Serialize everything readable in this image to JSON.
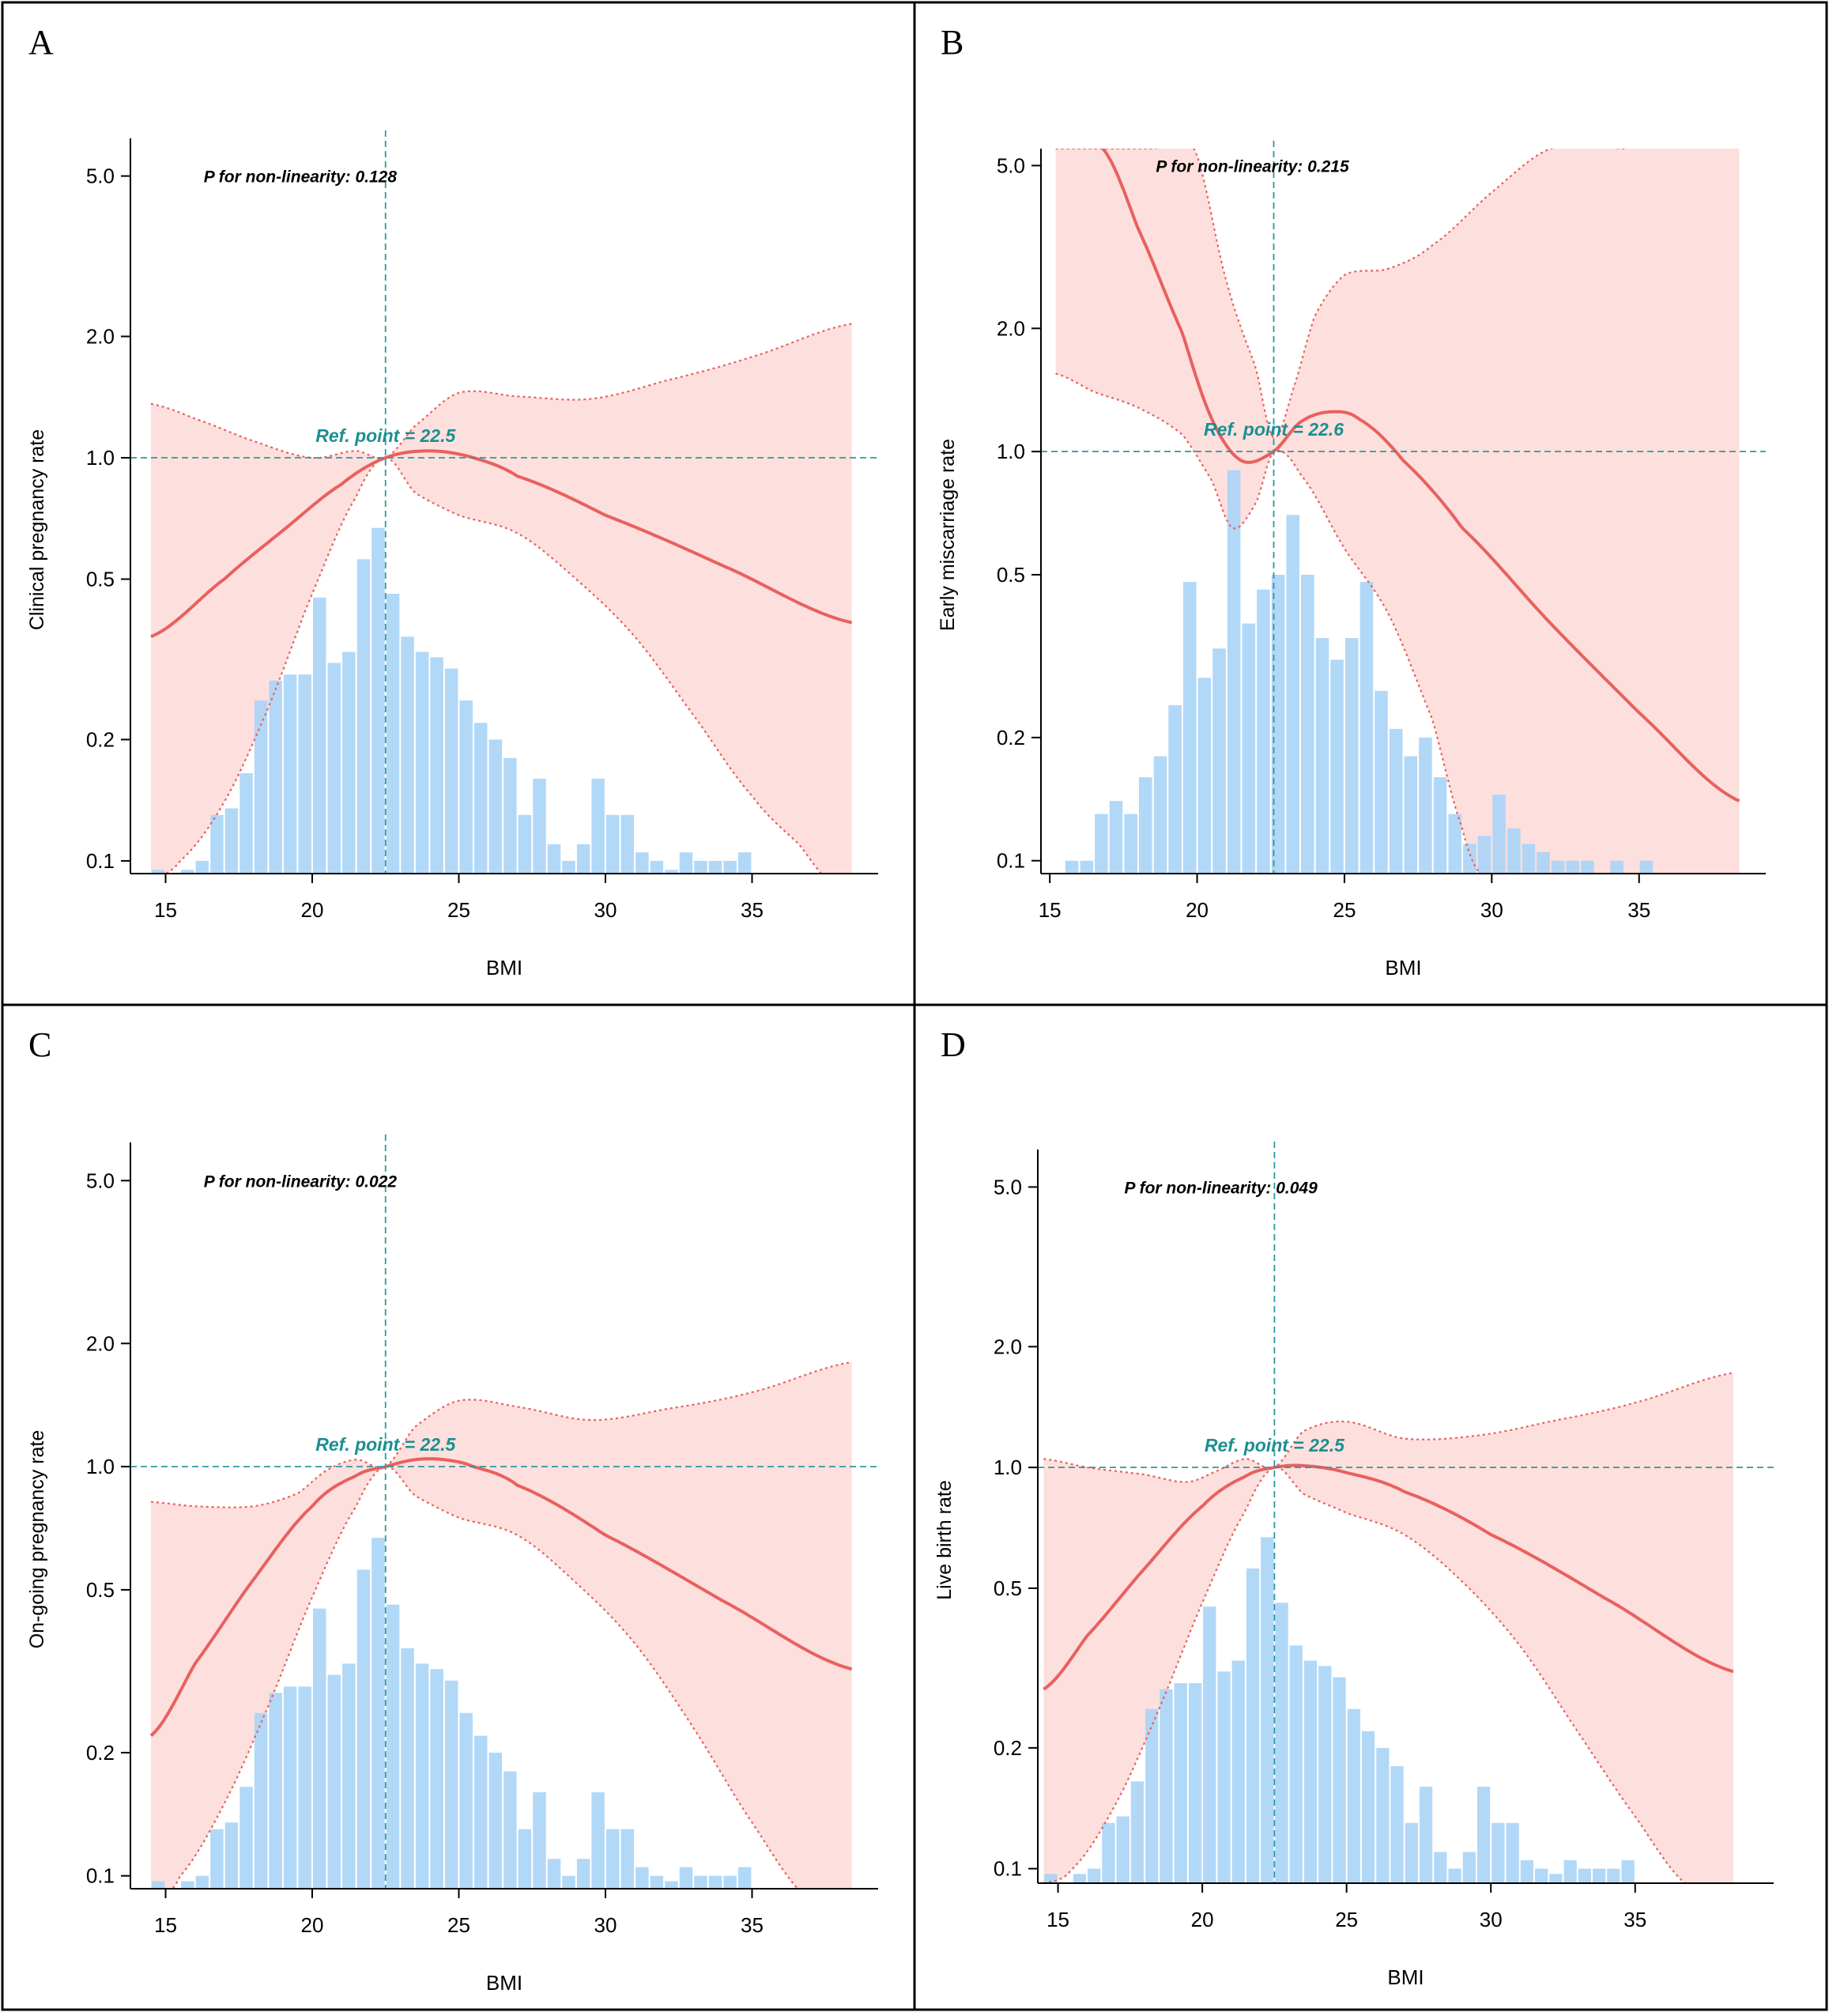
{
  "figure": {
    "colors": {
      "curve": "#e8615f",
      "band": "#fde0dd",
      "band_edge": "#e8615f",
      "hist": "#aad4f7",
      "hist_overlap": "#b4bde6",
      "ref_line": "#2a9a9f",
      "ref_text": "#1b8f91",
      "axis": "#000000",
      "frame": "#000000"
    }
  },
  "chart_data": [
    {
      "panel": "A",
      "type": "line",
      "xlabel": "BMI",
      "ylabel": "Clinical pregnancy rate",
      "xlim": [
        13.8,
        39.3
      ],
      "ylim": [
        0.093,
        6.2
      ],
      "yscale": "log",
      "xticks": [
        15,
        20,
        25,
        30,
        35
      ],
      "xtick_labels": [
        "15",
        "20",
        "25",
        "30",
        "35"
      ],
      "yticks": [
        0.1,
        0.2,
        0.5,
        1.0,
        2.0,
        5.0
      ],
      "ytick_labels": [
        "0.1",
        "0.2",
        "0.5",
        "1.0",
        "2.0",
        "5.0"
      ],
      "p_label": "P for non-linearity: 0.128",
      "p_at": [
        16.3,
        5.0
      ],
      "ref_label": "Ref. point = 22.5",
      "ref_x": 22.5,
      "ref_y": 1.0,
      "band_x_range": [
        14.5,
        38.4
      ],
      "curve": {
        "x": [
          14.5,
          17,
          19,
          21,
          22.5,
          24,
          25.5,
          27,
          30,
          34,
          38.4
        ],
        "y": [
          0.36,
          0.5,
          0.66,
          0.86,
          1.0,
          1.04,
          1.0,
          0.9,
          0.72,
          0.54,
          0.39
        ]
      },
      "ci_upper": {
        "x": [
          14.5,
          16,
          18,
          20,
          21.5,
          22.5,
          23.5,
          25,
          27,
          29.5,
          32,
          35,
          38.4
        ],
        "y": [
          1.36,
          1.25,
          1.1,
          1.0,
          1.04,
          1.0,
          1.2,
          1.45,
          1.42,
          1.4,
          1.55,
          1.78,
          2.15
        ]
      },
      "ci_lower": {
        "x": [
          14.5,
          15.5,
          17,
          18.5,
          20,
          21.5,
          22.5,
          23.5,
          25,
          27,
          29,
          31,
          33,
          35,
          36.6,
          37.8
        ],
        "y": [
          0.09,
          0.1,
          0.14,
          0.24,
          0.46,
          0.8,
          1.0,
          0.82,
          0.72,
          0.65,
          0.5,
          0.36,
          0.23,
          0.145,
          0.11,
          0.087
        ]
      },
      "histogram": {
        "bin_start": 14.5,
        "bin_width": 0.5,
        "heights": [
          0.095,
          0,
          0.095,
          0.1,
          0.13,
          0.135,
          0.165,
          0.25,
          0.28,
          0.29,
          0.29,
          0.45,
          0.31,
          0.33,
          0.56,
          0.67,
          0.46,
          0.36,
          0.33,
          0.32,
          0.3,
          0.25,
          0.22,
          0.2,
          0.18,
          0.13,
          0.16,
          0.11,
          0.1,
          0.11,
          0.16,
          0.13,
          0.13,
          0.105,
          0.1,
          0.095,
          0.105,
          0.1,
          0.1,
          0.1,
          0.105
        ]
      }
    },
    {
      "panel": "B",
      "type": "line",
      "xlabel": "BMI",
      "ylabel": "Early miscarriage rate",
      "xlim": [
        14.7,
        39.3
      ],
      "ylim": [
        0.093,
        5.5
      ],
      "yscale": "log",
      "xticks": [
        15,
        20,
        25,
        30,
        35
      ],
      "xtick_labels": [
        "15",
        "20",
        "25",
        "30",
        "35"
      ],
      "yticks": [
        0.1,
        0.2,
        0.5,
        1.0,
        2.0,
        5.0
      ],
      "ytick_labels": [
        "0.1",
        "0.2",
        "0.5",
        "1.0",
        "2.0",
        "5.0"
      ],
      "p_label": "P for non-linearity: 0.215",
      "p_at": [
        18.6,
        5.0
      ],
      "ref_label": "Ref. point = 22.6",
      "ref_x": 22.6,
      "ref_y": 1.0,
      "band_x_range": [
        15.2,
        38.4
      ],
      "curve": {
        "x": [
          16.8,
          18,
          19.5,
          20.5,
          21.5,
          22.6,
          23.5,
          24.5,
          25.5,
          27,
          29,
          32,
          35,
          38.4
        ],
        "y": [
          5.5,
          3.5,
          1.95,
          1.2,
          0.95,
          1.0,
          1.18,
          1.25,
          1.2,
          0.95,
          0.65,
          0.38,
          0.23,
          0.14
        ]
      },
      "ci_upper": {
        "x": [
          15.2,
          17,
          18.5,
          19.9,
          21,
          22,
          22.6,
          23.3,
          24,
          25,
          26.5,
          28,
          30,
          32,
          34.7
        ],
        "y": [
          5.5,
          5.5,
          5.5,
          5.5,
          2.6,
          1.6,
          1.08,
          1.45,
          2.15,
          2.7,
          2.8,
          3.2,
          4.3,
          5.5,
          5.5
        ]
      },
      "ci_lower": {
        "x": [
          15.2,
          16.5,
          18,
          19.5,
          20.5,
          21.2,
          22,
          22.6,
          23.5,
          25,
          26.5,
          28,
          29,
          29.6
        ],
        "y": [
          1.55,
          1.4,
          1.28,
          1.1,
          0.85,
          0.65,
          0.75,
          1.0,
          0.88,
          0.58,
          0.4,
          0.22,
          0.12,
          0.093
        ]
      },
      "histogram": {
        "bin_start": 15.5,
        "bin_width": 0.5,
        "heights": [
          0.1,
          0.1,
          0.13,
          0.14,
          0.13,
          0.16,
          0.18,
          0.24,
          0.48,
          0.28,
          0.33,
          0.9,
          0.38,
          0.46,
          0.5,
          0.7,
          0.5,
          0.35,
          0.31,
          0.35,
          0.48,
          0.26,
          0.21,
          0.18,
          0.2,
          0.16,
          0.13,
          0.11,
          0.115,
          0.145,
          0.12,
          0.11,
          0.105,
          0.1,
          0.1,
          0.1,
          0,
          0.1,
          0,
          0.1
        ]
      }
    },
    {
      "panel": "C",
      "type": "line",
      "xlabel": "BMI",
      "ylabel": "On-going pregnancy rate",
      "xlim": [
        13.8,
        39.3
      ],
      "ylim": [
        0.093,
        6.2
      ],
      "yscale": "log",
      "xticks": [
        15,
        20,
        25,
        30,
        35
      ],
      "xtick_labels": [
        "15",
        "20",
        "25",
        "30",
        "35"
      ],
      "yticks": [
        0.1,
        0.2,
        0.5,
        1.0,
        2.0,
        5.0
      ],
      "ytick_labels": [
        "0.1",
        "0.2",
        "0.5",
        "1.0",
        "2.0",
        "5.0"
      ],
      "p_label": "P for non-linearity: 0.022",
      "p_at": [
        16.3,
        5.0
      ],
      "ref_label": "Ref. point = 22.5",
      "ref_x": 22.5,
      "ref_y": 1.0,
      "band_x_range": [
        14.5,
        38.4
      ],
      "curve": {
        "x": [
          14.5,
          16,
          18,
          20,
          21.5,
          22.5,
          23.5,
          24.5,
          25.5,
          27,
          30,
          34,
          38.4
        ],
        "y": [
          0.22,
          0.33,
          0.53,
          0.8,
          0.95,
          1.0,
          1.04,
          1.04,
          1.0,
          0.9,
          0.68,
          0.47,
          0.32
        ]
      },
      "ci_upper": {
        "x": [
          14.5,
          16,
          18,
          19.5,
          20.5,
          21.5,
          22.5,
          23.5,
          25,
          27,
          29.5,
          32,
          35,
          38.4
        ],
        "y": [
          0.82,
          0.8,
          0.8,
          0.86,
          0.98,
          1.04,
          1.0,
          1.25,
          1.45,
          1.4,
          1.3,
          1.38,
          1.52,
          1.8
        ]
      },
      "ci_lower": {
        "x": [
          14.7,
          15.5,
          17,
          18.5,
          20,
          21.5,
          22.5,
          23.5,
          25,
          27,
          29,
          31,
          33,
          35,
          37
        ],
        "y": [
          0.086,
          0.1,
          0.15,
          0.26,
          0.48,
          0.8,
          1.0,
          0.85,
          0.75,
          0.68,
          0.52,
          0.37,
          0.23,
          0.135,
          0.087
        ]
      },
      "histogram": {
        "bin_start": 14.5,
        "bin_width": 0.5,
        "heights": [
          0.097,
          0,
          0.097,
          0.1,
          0.13,
          0.135,
          0.165,
          0.25,
          0.28,
          0.29,
          0.29,
          0.45,
          0.31,
          0.33,
          0.56,
          0.67,
          0.46,
          0.36,
          0.33,
          0.32,
          0.3,
          0.25,
          0.22,
          0.2,
          0.18,
          0.13,
          0.16,
          0.11,
          0.1,
          0.11,
          0.16,
          0.13,
          0.13,
          0.105,
          0.1,
          0.097,
          0.105,
          0.1,
          0.1,
          0.1,
          0.105
        ]
      }
    },
    {
      "panel": "D",
      "type": "line",
      "xlabel": "BMI",
      "ylabel": "Live birth rate",
      "xlim": [
        14.3,
        39.8
      ],
      "ylim": [
        0.092,
        6.2
      ],
      "yscale": "log",
      "xticks": [
        15,
        20,
        25,
        30,
        35
      ],
      "xtick_labels": [
        "15",
        "20",
        "25",
        "30",
        "35"
      ],
      "yticks": [
        0.1,
        0.2,
        0.5,
        1.0,
        2.0,
        5.0
      ],
      "ytick_labels": [
        "0.1",
        "0.2",
        "0.5",
        "1.0",
        "2.0",
        "5.0"
      ],
      "p_label": "P for non-linearity: 0.049",
      "p_at": [
        17.3,
        5.0
      ],
      "ref_label": "Ref. point = 22.5",
      "ref_x": 22.5,
      "ref_y": 1.0,
      "band_x_range": [
        14.5,
        38.4
      ],
      "curve": {
        "x": [
          14.5,
          16,
          18,
          20,
          21.5,
          22.5,
          23.5,
          25,
          27,
          30,
          34,
          38.4
        ],
        "y": [
          0.28,
          0.38,
          0.56,
          0.8,
          0.95,
          1.0,
          1.01,
          0.97,
          0.87,
          0.68,
          0.47,
          0.31
        ]
      },
      "ci_upper": {
        "x": [
          14.5,
          16,
          18,
          19.5,
          20.5,
          21.5,
          22.5,
          23.5,
          25,
          27,
          29.5,
          32,
          35,
          38.4
        ],
        "y": [
          1.05,
          1.0,
          0.96,
          0.92,
          0.98,
          1.05,
          1.0,
          1.23,
          1.3,
          1.18,
          1.2,
          1.3,
          1.45,
          1.72
        ]
      },
      "ci_lower": {
        "x": [
          14.5,
          15.5,
          17,
          18.5,
          20,
          21.5,
          22.5,
          23.5,
          25,
          27,
          29,
          31,
          33,
          35,
          36.9
        ],
        "y": [
          0.092,
          0.1,
          0.145,
          0.25,
          0.46,
          0.78,
          1.0,
          0.86,
          0.77,
          0.68,
          0.52,
          0.36,
          0.22,
          0.135,
          0.09
        ]
      },
      "histogram": {
        "bin_start": 14.5,
        "bin_width": 0.5,
        "heights": [
          0.097,
          0,
          0.097,
          0.1,
          0.13,
          0.135,
          0.165,
          0.25,
          0.28,
          0.29,
          0.29,
          0.45,
          0.31,
          0.33,
          0.56,
          0.67,
          0.46,
          0.36,
          0.33,
          0.32,
          0.3,
          0.25,
          0.22,
          0.2,
          0.18,
          0.13,
          0.16,
          0.11,
          0.1,
          0.11,
          0.16,
          0.13,
          0.13,
          0.105,
          0.1,
          0.097,
          0.105,
          0.1,
          0.1,
          0.1,
          0.105
        ]
      }
    }
  ]
}
